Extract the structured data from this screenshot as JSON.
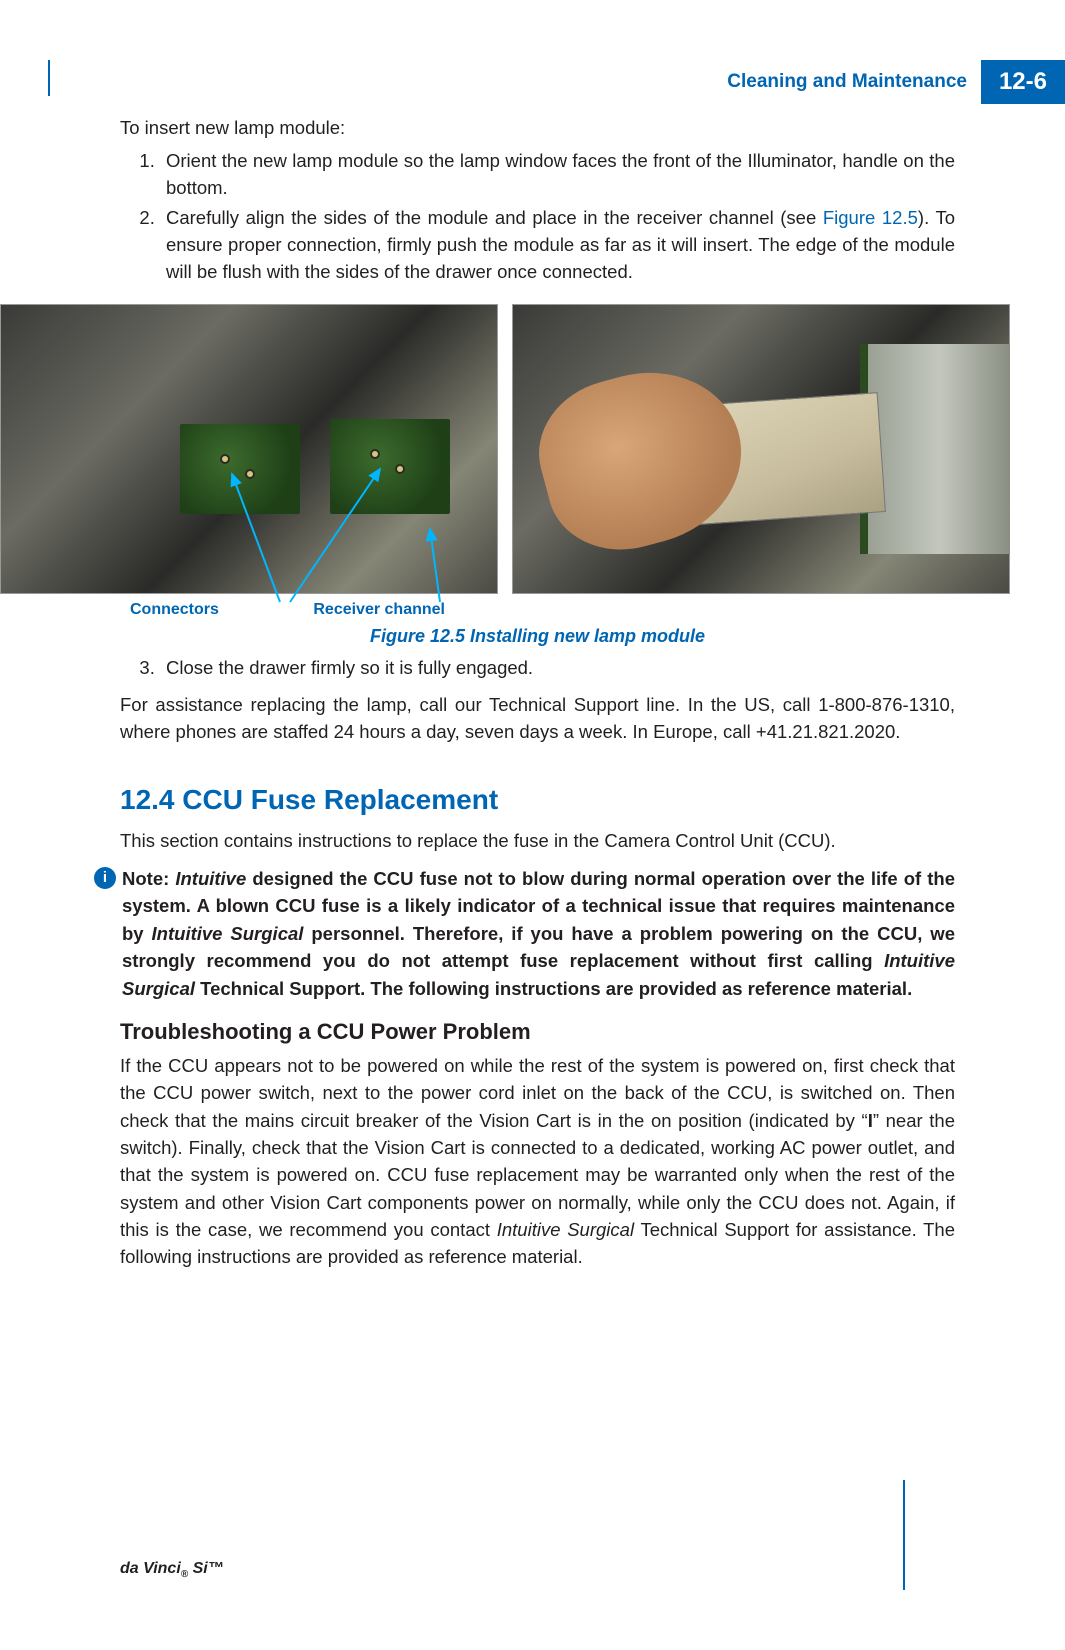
{
  "header": {
    "chapter_title": "Cleaning and Maintenance",
    "page_label": "12-6"
  },
  "intro_line": "To insert new lamp module:",
  "steps_a": [
    "Orient the new lamp module so the lamp window faces the front of the Illuminator, handle on the bottom.",
    "Carefully align the sides of the module and place in the receiver channel (see "
  ],
  "step2_ref": "Figure 12.5",
  "step2_tail": "). To ensure proper connection, firmly push the module as far as it will insert. The edge of the module will be flush with the sides of the drawer once connected.",
  "callouts": {
    "connectors": "Connectors",
    "receiver": "Receiver channel"
  },
  "figure_caption": "Figure 12.5 Installing new lamp module",
  "step3": "Close the drawer firmly so it is fully engaged.",
  "support_para": "For assistance replacing the lamp, call our Technical Support line. In the US, call 1-800-876-1310, where phones are staffed 24 hours a day, seven days a week. In Europe, call +41.21.821.2020.",
  "section_heading": "12.4 CCU Fuse Replacement",
  "section_intro": "This section contains instructions to replace the fuse in the Camera Control Unit (CCU).",
  "note": {
    "label": "Note: ",
    "body_parts": [
      {
        "t": "b i",
        "v": "Intuitive"
      },
      {
        "t": "b",
        "v": " designed the CCU fuse not to blow during normal operation over the life of the system. A blown CCU fuse is a likely indicator of a technical issue that requires maintenance by "
      },
      {
        "t": "b i",
        "v": "Intuitive Surgical"
      },
      {
        "t": "b",
        "v": " personnel. Therefore, if you have a problem powering on the CCU, we strongly recommend you do not attempt fuse replacement without first calling "
      },
      {
        "t": "b i",
        "v": "Intuitive Surgical"
      },
      {
        "t": "b",
        "v": " Technical Support. The following instructions are provided as reference material."
      }
    ]
  },
  "subheading": "Troubleshooting a CCU Power Problem",
  "trouble_parts": [
    {
      "t": "",
      "v": "If the CCU appears not to be powered on while the rest of the system is powered on, first check that the CCU power switch, next to the power cord inlet on the back of the CCU, is switched on. Then check that the mains circuit breaker of the Vision Cart is in the on position (indicated by “"
    },
    {
      "t": "b",
      "v": "I"
    },
    {
      "t": "",
      "v": "” near the switch). Finally, check that the Vision Cart is connected to a dedicated, working AC power outlet, and that the system is powered on. CCU fuse replacement may be warranted only when the rest of the system and other Vision Cart components power on normally, while only the CCU does not. Again, if this is the case, we recommend you contact "
    },
    {
      "t": "i",
      "v": "Intuitive Surgical"
    },
    {
      "t": "",
      "v": " Technical Support for assistance. The following instructions are provided as reference material."
    }
  ],
  "footer": "da Vinci® Si™",
  "colors": {
    "brand": "#0066b3",
    "text": "#231f20",
    "arrow": "#00b7ff"
  }
}
